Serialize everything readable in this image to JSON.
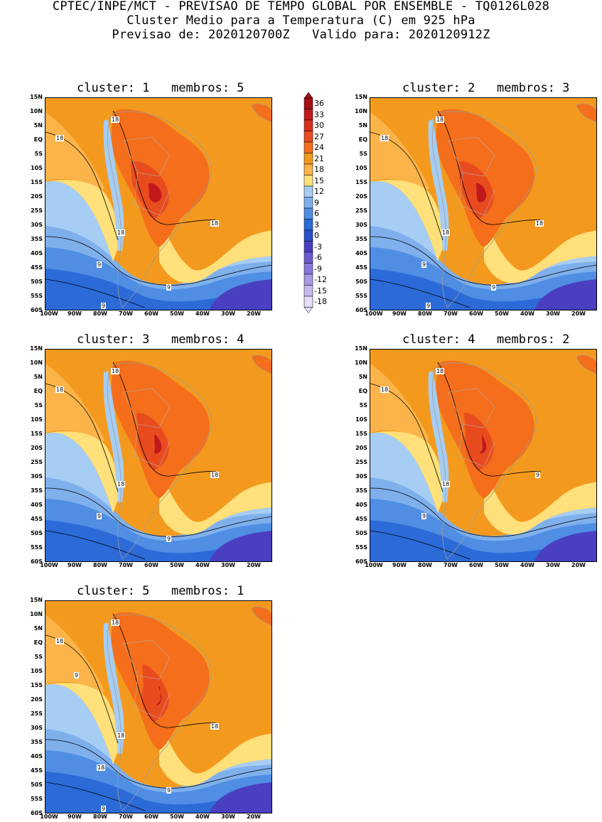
{
  "header": {
    "line1": "CPTEC/INPE/MCT - PREVISAO DE TEMPO GLOBAL POR ENSEMBLE - TQ0126L028",
    "line2": "Cluster Medio para a Temperatura (C) em 925 hPa",
    "line3": "Previsao de: 2020120700Z   Valido para: 2020120912Z"
  },
  "lat_ticks": [
    "15N",
    "10N",
    "5N",
    "EQ",
    "5S",
    "10S",
    "15S",
    "20S",
    "25S",
    "30S",
    "35S",
    "40S",
    "45S",
    "50S",
    "55S",
    "60S"
  ],
  "lon_ticks": [
    "100W",
    "90W",
    "80W",
    "70W",
    "60W",
    "50W",
    "40W",
    "30W",
    "20W"
  ],
  "colorbar": {
    "levels": [
      "36",
      "33",
      "30",
      "27",
      "24",
      "21",
      "18",
      "15",
      "12",
      "9",
      "6",
      "3",
      "0",
      "-3",
      "-6",
      "-9",
      "-12",
      "-15",
      "-18"
    ],
    "colors": [
      "#a50f15",
      "#c0181c",
      "#d7301f",
      "#e84c1e",
      "#f46e1b",
      "#f39a1e",
      "#fbb44a",
      "#ffe07a",
      "#a6cdf3",
      "#7fb0ec",
      "#4f8ee3",
      "#2c6ad8",
      "#2a4fc9",
      "#4a3fc0",
      "#6a5ad0",
      "#8878dc",
      "#a898e6",
      "#c8baf0",
      "#e4dcf8"
    ]
  },
  "panels": [
    {
      "title": "cluster: 1   membros: 5",
      "contour_labels": [
        "18",
        "18",
        "18",
        "18",
        "9",
        "9",
        "9"
      ]
    },
    {
      "title": "cluster: 2   membros: 3",
      "contour_labels": [
        "18",
        "18",
        "18",
        "18",
        "9",
        "9",
        "9"
      ]
    },
    {
      "title": "cluster: 3   membros: 4",
      "contour_labels": [
        "18",
        "18",
        "18",
        "18",
        "9",
        "9"
      ]
    },
    {
      "title": "cluster: 4   membros: 2",
      "contour_labels": [
        "18",
        "18",
        "18",
        "9",
        "9"
      ]
    },
    {
      "title": "cluster: 5   membros: 1",
      "contour_labels": [
        "18",
        "18",
        "18",
        "18",
        "18",
        "9",
        "9",
        "9"
      ]
    }
  ]
}
